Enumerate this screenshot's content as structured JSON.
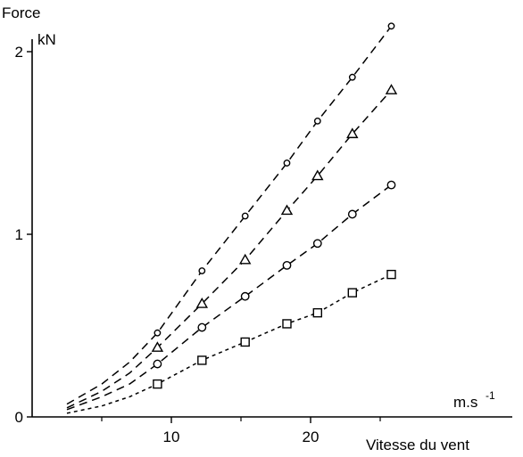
{
  "chart_data": {
    "type": "line",
    "ylabel_line1": "Force",
    "ylabel_unit": "kN",
    "xlabel_unit": "m.s",
    "xlabel_unit_exp": "-1",
    "xlabel": "Vitesse du vent",
    "xlim": [
      0,
      27
    ],
    "ylim": [
      0,
      2.2
    ],
    "x_ticks": [
      10,
      20
    ],
    "y_ticks": [
      0,
      1,
      2
    ],
    "x_tick_labels": [
      "10",
      "20"
    ],
    "y_tick_labels": [
      "0",
      "1",
      "2"
    ],
    "grid": false,
    "legend": "none",
    "series": [
      {
        "marker": "small-circle",
        "dash": "long",
        "points": [
          [
            9,
            0.46
          ],
          [
            12.2,
            0.8
          ],
          [
            15.3,
            1.1
          ],
          [
            18.3,
            1.39
          ],
          [
            20.5,
            1.62
          ],
          [
            23,
            1.86
          ],
          [
            25.8,
            2.14
          ]
        ],
        "curve_from": [
          [
            2.5,
            0.07
          ],
          [
            5,
            0.18
          ],
          [
            7,
            0.3
          ]
        ]
      },
      {
        "marker": "triangle",
        "dash": "long",
        "points": [
          [
            9,
            0.38
          ],
          [
            12.2,
            0.62
          ],
          [
            15.3,
            0.86
          ],
          [
            18.3,
            1.13
          ],
          [
            20.5,
            1.32
          ],
          [
            23,
            1.55
          ],
          [
            25.8,
            1.79
          ]
        ],
        "curve_from": [
          [
            2.5,
            0.05
          ],
          [
            5,
            0.14
          ],
          [
            7,
            0.24
          ]
        ]
      },
      {
        "marker": "circle",
        "dash": "long",
        "points": [
          [
            9,
            0.29
          ],
          [
            12.2,
            0.49
          ],
          [
            15.3,
            0.66
          ],
          [
            18.3,
            0.83
          ],
          [
            20.5,
            0.95
          ],
          [
            23,
            1.11
          ],
          [
            25.8,
            1.27
          ]
        ],
        "curve_from": [
          [
            2.5,
            0.04
          ],
          [
            5,
            0.11
          ],
          [
            7,
            0.18
          ]
        ]
      },
      {
        "marker": "square",
        "dash": "short",
        "points": [
          [
            9,
            0.18
          ],
          [
            12.2,
            0.31
          ],
          [
            15.3,
            0.41
          ],
          [
            18.3,
            0.51
          ],
          [
            20.5,
            0.57
          ],
          [
            23,
            0.68
          ],
          [
            25.8,
            0.78
          ]
        ],
        "curve_from": [
          [
            2.5,
            0.02
          ],
          [
            5,
            0.06
          ],
          [
            7,
            0.11
          ]
        ]
      }
    ]
  }
}
